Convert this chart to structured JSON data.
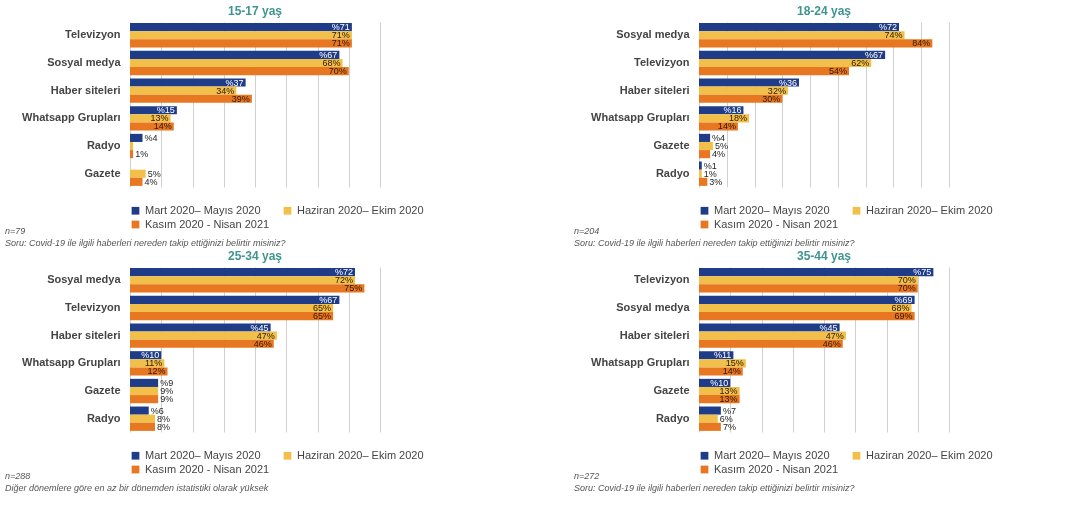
{
  "chart_data": [
    {
      "type": "bar",
      "orientation": "horizontal",
      "title": "15-17 yaş",
      "categories": [
        "Televizyon",
        "Sosyal medya",
        "Haber siteleri",
        "Whatsapp Grupları",
        "Radyo",
        "Gazete"
      ],
      "grid": "x",
      "tick_labels": "y",
      "legend": "bottom",
      "series": [
        {
          "name": "Mart 2020– Mayıs 2020",
          "color": "#1f3c88",
          "values": [
            71,
            67,
            37,
            15,
            4,
            null
          ],
          "value_labels": [
            "%71",
            "%67",
            "%37",
            "%15",
            "%4",
            null
          ]
        },
        {
          "name": "Haziran 2020– Ekim 2020",
          "color": "#f2c04a",
          "values": [
            71,
            68,
            34,
            13,
            1,
            5
          ],
          "value_labels": [
            "71%",
            "68%",
            "34%",
            "13%",
            null,
            "5%"
          ]
        },
        {
          "name": "Kasım 2020 - Nisan 2021",
          "color": "#e87722",
          "values": [
            71,
            70,
            39,
            14,
            1,
            4
          ],
          "value_labels": [
            "71%",
            "70%",
            "39%",
            "14%",
            "1%",
            "4%"
          ]
        }
      ],
      "annotations": [
        "n=79",
        "Soru: Covid-19 ile ilgili haberleri nereden takip ettiğinizi belirtir misiniz?"
      ]
    },
    {
      "type": "bar",
      "orientation": "horizontal",
      "title": "18-24 yaş",
      "categories": [
        "Sosyal medya",
        "Televizyon",
        "Haber siteleri",
        "Whatsapp Grupları",
        "Gazete",
        "Radyo"
      ],
      "grid": "x",
      "tick_labels": "y",
      "legend": "bottom",
      "series": [
        {
          "name": "Mart 2020– Mayıs 2020",
          "color": "#1f3c88",
          "values": [
            72,
            67,
            36,
            16,
            4,
            1
          ],
          "value_labels": [
            "%72",
            "%67",
            "%36",
            "%16",
            "%4",
            "%1"
          ]
        },
        {
          "name": "Haziran 2020– Ekim 2020",
          "color": "#f2c04a",
          "values": [
            74,
            62,
            32,
            18,
            5,
            1
          ],
          "value_labels": [
            "74%",
            "62%",
            "32%",
            "18%",
            "5%",
            "1%"
          ]
        },
        {
          "name": "Kasım 2020 - Nisan 2021",
          "color": "#e87722",
          "values": [
            84,
            54,
            30,
            14,
            4,
            3
          ],
          "value_labels": [
            "84%",
            "54%",
            "30%",
            "14%",
            "4%",
            "3%"
          ]
        }
      ],
      "annotations": [
        "n=204",
        "Soru: Covid-19 ile ilgili haberleri nereden takip ettiğinizi belirtir misiniz?"
      ]
    },
    {
      "type": "bar",
      "orientation": "horizontal",
      "title": "25-34 yaş",
      "categories": [
        "Sosyal medya",
        "Televizyon",
        "Haber siteleri",
        "Whatsapp Grupları",
        "Gazete",
        "Radyo"
      ],
      "grid": "x",
      "tick_labels": "y",
      "legend": "bottom",
      "series": [
        {
          "name": "Mart 2020– Mayıs 2020",
          "color": "#1f3c88",
          "values": [
            72,
            67,
            45,
            10,
            9,
            6
          ],
          "value_labels": [
            "%72",
            "%67",
            "%45",
            "%10",
            "%9",
            "%6"
          ]
        },
        {
          "name": "Haziran 2020– Ekim 2020",
          "color": "#f2c04a",
          "values": [
            72,
            65,
            47,
            11,
            9,
            8
          ],
          "value_labels": [
            "72%",
            "65%",
            "47%",
            "11%",
            "9%",
            "8%"
          ]
        },
        {
          "name": "Kasım 2020 - Nisan 2021",
          "color": "#e87722",
          "values": [
            75,
            65,
            46,
            12,
            9,
            8
          ],
          "value_labels": [
            "75%",
            "65%",
            "46%",
            "12%",
            "9%",
            "8%"
          ]
        }
      ],
      "annotations": [
        "n=288",
        "Diğer dönemlere göre en az bir dönemden istatistiki olarak yüksek"
      ]
    },
    {
      "type": "bar",
      "orientation": "horizontal",
      "title": "35-44 yaş",
      "categories": [
        "Televizyon",
        "Sosyal medya",
        "Haber siteleri",
        "Whatsapp Grupları",
        "Gazete",
        "Radyo"
      ],
      "grid": "x",
      "tick_labels": "y",
      "legend": "bottom",
      "series": [
        {
          "name": "Mart 2020– Mayıs 2020",
          "color": "#1f3c88",
          "values": [
            75,
            69,
            45,
            11,
            10,
            7
          ],
          "value_labels": [
            "%75",
            "%69",
            "%45",
            "%11",
            "%10",
            "%7"
          ]
        },
        {
          "name": "Haziran 2020– Ekim 2020",
          "color": "#f2c04a",
          "values": [
            70,
            68,
            47,
            15,
            13,
            6
          ],
          "value_labels": [
            "70%",
            "68%",
            "47%",
            "15%",
            "13%",
            "6%"
          ]
        },
        {
          "name": "Kasım 2020 - Nisan 2021",
          "color": "#e87722",
          "values": [
            70,
            69,
            46,
            14,
            13,
            7
          ],
          "value_labels": [
            "70%",
            "69%",
            "46%",
            "14%",
            "13%",
            "7%"
          ]
        }
      ],
      "annotations": [
        "n=272",
        "Soru: Covid-19 ile ilgili haberleri nereden takip ettiğinizi belirtir misiniz?"
      ]
    }
  ]
}
